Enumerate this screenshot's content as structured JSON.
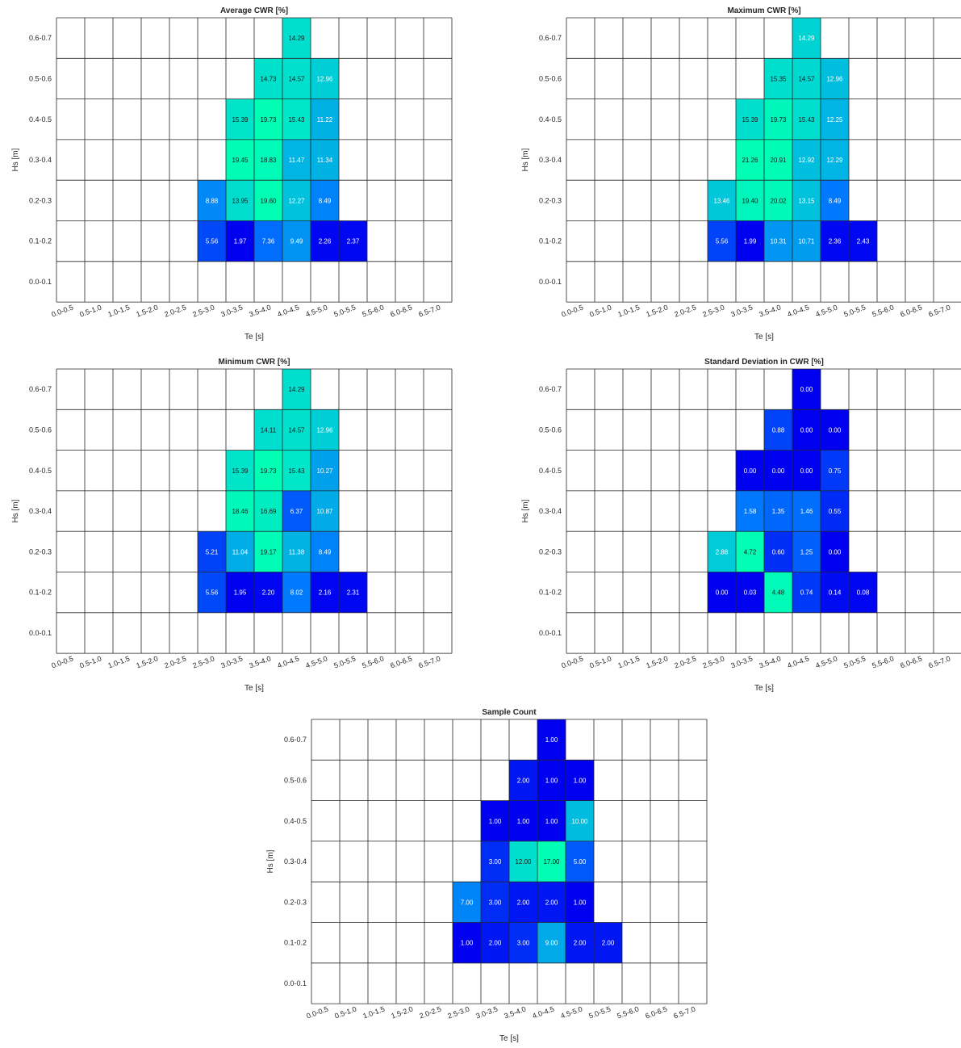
{
  "figure": {
    "background": "#ffffff",
    "colormap": [
      "#0000f0",
      "#0078ff",
      "#00dcd0",
      "#00ffb4"
    ]
  },
  "chart_data": [
    {
      "type": "heatmap",
      "title": "Average CWR [%]",
      "xlabel": "Te [s]",
      "ylabel": "Hs [m]",
      "x_categories": [
        "0.0-0.5",
        "0.5-1.0",
        "1.0-1.5",
        "1.5-2.0",
        "2.0-2.5",
        "2.5-3.0",
        "3.0-3.5",
        "3.5-4.0",
        "4.0-4.5",
        "4.5-5.0",
        "5.0-5.5",
        "5.5-6.0",
        "6.0-6.5",
        "6.5-7.0"
      ],
      "y_categories": [
        "0.6-0.7",
        "0.5-0.6",
        "0.4-0.5",
        "0.3-0.4",
        "0.2-0.3",
        "0.1-0.2",
        "0.0-0.1"
      ],
      "cells": [
        {
          "x": "4.0-4.5",
          "y": "0.6-0.7",
          "value": "14.29"
        },
        {
          "x": "3.5-4.0",
          "y": "0.5-0.6",
          "value": "14.73"
        },
        {
          "x": "4.0-4.5",
          "y": "0.5-0.6",
          "value": "14.57"
        },
        {
          "x": "4.5-5.0",
          "y": "0.5-0.6",
          "value": "12.96"
        },
        {
          "x": "3.0-3.5",
          "y": "0.4-0.5",
          "value": "15.39"
        },
        {
          "x": "3.5-4.0",
          "y": "0.4-0.5",
          "value": "19.73"
        },
        {
          "x": "4.0-4.5",
          "y": "0.4-0.5",
          "value": "15.43"
        },
        {
          "x": "4.5-5.0",
          "y": "0.4-0.5",
          "value": "11.22"
        },
        {
          "x": "3.0-3.5",
          "y": "0.3-0.4",
          "value": "19.45"
        },
        {
          "x": "3.5-4.0",
          "y": "0.3-0.4",
          "value": "18.83"
        },
        {
          "x": "4.0-4.5",
          "y": "0.3-0.4",
          "value": "11.47"
        },
        {
          "x": "4.5-5.0",
          "y": "0.3-0.4",
          "value": "11.34"
        },
        {
          "x": "2.5-3.0",
          "y": "0.2-0.3",
          "value": "8.88"
        },
        {
          "x": "3.0-3.5",
          "y": "0.2-0.3",
          "value": "13.95"
        },
        {
          "x": "3.5-4.0",
          "y": "0.2-0.3",
          "value": "19.60"
        },
        {
          "x": "4.0-4.5",
          "y": "0.2-0.3",
          "value": "12.27"
        },
        {
          "x": "4.5-5.0",
          "y": "0.2-0.3",
          "value": "8.49"
        },
        {
          "x": "2.5-3.0",
          "y": "0.1-0.2",
          "value": "5.56"
        },
        {
          "x": "3.0-3.5",
          "y": "0.1-0.2",
          "value": "1.97"
        },
        {
          "x": "3.5-4.0",
          "y": "0.1-0.2",
          "value": "7.36"
        },
        {
          "x": "4.0-4.5",
          "y": "0.1-0.2",
          "value": "9.49"
        },
        {
          "x": "4.5-5.0",
          "y": "0.1-0.2",
          "value": "2.26"
        },
        {
          "x": "5.0-5.5",
          "y": "0.1-0.2",
          "value": "2.37"
        }
      ]
    },
    {
      "type": "heatmap",
      "title": "Maximum CWR [%]",
      "xlabel": "Te [s]",
      "ylabel": "Hs [m]",
      "x_categories": [
        "0.0-0.5",
        "0.5-1.0",
        "1.0-1.5",
        "1.5-2.0",
        "2.0-2.5",
        "2.5-3.0",
        "3.0-3.5",
        "3.5-4.0",
        "4.0-4.5",
        "4.5-5.0",
        "5.0-5.5",
        "5.5-6.0",
        "6.0-6.5",
        "6.5-7.0"
      ],
      "y_categories": [
        "0.6-0.7",
        "0.5-0.6",
        "0.4-0.5",
        "0.3-0.4",
        "0.2-0.3",
        "0.1-0.2",
        "0.0-0.1"
      ],
      "cells": [
        {
          "x": "4.0-4.5",
          "y": "0.6-0.7",
          "value": "14.29"
        },
        {
          "x": "3.5-4.0",
          "y": "0.5-0.6",
          "value": "15.35"
        },
        {
          "x": "4.0-4.5",
          "y": "0.5-0.6",
          "value": "14.57"
        },
        {
          "x": "4.5-5.0",
          "y": "0.5-0.6",
          "value": "12.96"
        },
        {
          "x": "3.0-3.5",
          "y": "0.4-0.5",
          "value": "15.39"
        },
        {
          "x": "3.5-4.0",
          "y": "0.4-0.5",
          "value": "19.73"
        },
        {
          "x": "4.0-4.5",
          "y": "0.4-0.5",
          "value": "15.43"
        },
        {
          "x": "4.5-5.0",
          "y": "0.4-0.5",
          "value": "12.25"
        },
        {
          "x": "3.0-3.5",
          "y": "0.3-0.4",
          "value": "21.26"
        },
        {
          "x": "3.5-4.0",
          "y": "0.3-0.4",
          "value": "20.91"
        },
        {
          "x": "4.0-4.5",
          "y": "0.3-0.4",
          "value": "12.92"
        },
        {
          "x": "4.5-5.0",
          "y": "0.3-0.4",
          "value": "12.29"
        },
        {
          "x": "2.5-3.0",
          "y": "0.2-0.3",
          "value": "13.46"
        },
        {
          "x": "3.0-3.5",
          "y": "0.2-0.3",
          "value": "19.40"
        },
        {
          "x": "3.5-4.0",
          "y": "0.2-0.3",
          "value": "20.02"
        },
        {
          "x": "4.0-4.5",
          "y": "0.2-0.3",
          "value": "13.15"
        },
        {
          "x": "4.5-5.0",
          "y": "0.2-0.3",
          "value": "8.49"
        },
        {
          "x": "2.5-3.0",
          "y": "0.1-0.2",
          "value": "5.56"
        },
        {
          "x": "3.0-3.5",
          "y": "0.1-0.2",
          "value": "1.99"
        },
        {
          "x": "3.5-4.0",
          "y": "0.1-0.2",
          "value": "10.31"
        },
        {
          "x": "4.0-4.5",
          "y": "0.1-0.2",
          "value": "10.71"
        },
        {
          "x": "4.5-5.0",
          "y": "0.1-0.2",
          "value": "2.36"
        },
        {
          "x": "5.0-5.5",
          "y": "0.1-0.2",
          "value": "2.43"
        }
      ]
    },
    {
      "type": "heatmap",
      "title": "Minimum CWR [%]",
      "xlabel": "Te [s]",
      "ylabel": "Hs [m]",
      "x_categories": [
        "0.0-0.5",
        "0.5-1.0",
        "1.0-1.5",
        "1.5-2.0",
        "2.0-2.5",
        "2.5-3.0",
        "3.0-3.5",
        "3.5-4.0",
        "4.0-4.5",
        "4.5-5.0",
        "5.0-5.5",
        "5.5-6.0",
        "6.0-6.5",
        "6.5-7.0"
      ],
      "y_categories": [
        "0.6-0.7",
        "0.5-0.6",
        "0.4-0.5",
        "0.3-0.4",
        "0.2-0.3",
        "0.1-0.2",
        "0.0-0.1"
      ],
      "cells": [
        {
          "x": "4.0-4.5",
          "y": "0.6-0.7",
          "value": "14.29"
        },
        {
          "x": "3.5-4.0",
          "y": "0.5-0.6",
          "value": "14.11"
        },
        {
          "x": "4.0-4.5",
          "y": "0.5-0.6",
          "value": "14.57"
        },
        {
          "x": "4.5-5.0",
          "y": "0.5-0.6",
          "value": "12.96"
        },
        {
          "x": "3.0-3.5",
          "y": "0.4-0.5",
          "value": "15.39"
        },
        {
          "x": "3.5-4.0",
          "y": "0.4-0.5",
          "value": "19.73"
        },
        {
          "x": "4.0-4.5",
          "y": "0.4-0.5",
          "value": "15.43"
        },
        {
          "x": "4.5-5.0",
          "y": "0.4-0.5",
          "value": "10.27"
        },
        {
          "x": "3.0-3.5",
          "y": "0.3-0.4",
          "value": "18.46"
        },
        {
          "x": "3.5-4.0",
          "y": "0.3-0.4",
          "value": "16.69"
        },
        {
          "x": "4.0-4.5",
          "y": "0.3-0.4",
          "value": "6.37"
        },
        {
          "x": "4.5-5.0",
          "y": "0.3-0.4",
          "value": "10.87"
        },
        {
          "x": "2.5-3.0",
          "y": "0.2-0.3",
          "value": "5.21"
        },
        {
          "x": "3.0-3.5",
          "y": "0.2-0.3",
          "value": "11.04"
        },
        {
          "x": "3.5-4.0",
          "y": "0.2-0.3",
          "value": "19.17"
        },
        {
          "x": "4.0-4.5",
          "y": "0.2-0.3",
          "value": "11.38"
        },
        {
          "x": "4.5-5.0",
          "y": "0.2-0.3",
          "value": "8.49"
        },
        {
          "x": "2.5-3.0",
          "y": "0.1-0.2",
          "value": "5.56"
        },
        {
          "x": "3.0-3.5",
          "y": "0.1-0.2",
          "value": "1.95"
        },
        {
          "x": "3.5-4.0",
          "y": "0.1-0.2",
          "value": "2.20"
        },
        {
          "x": "4.0-4.5",
          "y": "0.1-0.2",
          "value": "8.02"
        },
        {
          "x": "4.5-5.0",
          "y": "0.1-0.2",
          "value": "2.16"
        },
        {
          "x": "5.0-5.5",
          "y": "0.1-0.2",
          "value": "2.31"
        }
      ]
    },
    {
      "type": "heatmap",
      "title": "Standard Deviation in CWR [%]",
      "xlabel": "Te [s]",
      "ylabel": "Hs [m]",
      "x_categories": [
        "0.0-0.5",
        "0.5-1.0",
        "1.0-1.5",
        "1.5-2.0",
        "2.0-2.5",
        "2.5-3.0",
        "3.0-3.5",
        "3.5-4.0",
        "4.0-4.5",
        "4.5-5.0",
        "5.0-5.5",
        "5.5-6.0",
        "6.0-6.5",
        "6.5-7.0"
      ],
      "y_categories": [
        "0.6-0.7",
        "0.5-0.6",
        "0.4-0.5",
        "0.3-0.4",
        "0.2-0.3",
        "0.1-0.2",
        "0.0-0.1"
      ],
      "cells": [
        {
          "x": "4.0-4.5",
          "y": "0.6-0.7",
          "value": "0.00"
        },
        {
          "x": "3.5-4.0",
          "y": "0.5-0.6",
          "value": "0.88"
        },
        {
          "x": "4.0-4.5",
          "y": "0.5-0.6",
          "value": "0.00"
        },
        {
          "x": "4.5-5.0",
          "y": "0.5-0.6",
          "value": "0.00"
        },
        {
          "x": "3.0-3.5",
          "y": "0.4-0.5",
          "value": "0.00"
        },
        {
          "x": "3.5-4.0",
          "y": "0.4-0.5",
          "value": "0.00"
        },
        {
          "x": "4.0-4.5",
          "y": "0.4-0.5",
          "value": "0.00"
        },
        {
          "x": "4.5-5.0",
          "y": "0.4-0.5",
          "value": "0.75"
        },
        {
          "x": "3.0-3.5",
          "y": "0.3-0.4",
          "value": "1.58"
        },
        {
          "x": "3.5-4.0",
          "y": "0.3-0.4",
          "value": "1.35"
        },
        {
          "x": "4.0-4.5",
          "y": "0.3-0.4",
          "value": "1.46"
        },
        {
          "x": "4.5-5.0",
          "y": "0.3-0.4",
          "value": "0.55"
        },
        {
          "x": "2.5-3.0",
          "y": "0.2-0.3",
          "value": "2.88"
        },
        {
          "x": "3.0-3.5",
          "y": "0.2-0.3",
          "value": "4.72"
        },
        {
          "x": "3.5-4.0",
          "y": "0.2-0.3",
          "value": "0.60"
        },
        {
          "x": "4.0-4.5",
          "y": "0.2-0.3",
          "value": "1.25"
        },
        {
          "x": "4.5-5.0",
          "y": "0.2-0.3",
          "value": "0.00"
        },
        {
          "x": "2.5-3.0",
          "y": "0.1-0.2",
          "value": "0.00"
        },
        {
          "x": "3.0-3.5",
          "y": "0.1-0.2",
          "value": "0.03"
        },
        {
          "x": "3.5-4.0",
          "y": "0.1-0.2",
          "value": "4.48"
        },
        {
          "x": "4.0-4.5",
          "y": "0.1-0.2",
          "value": "0.74"
        },
        {
          "x": "4.5-5.0",
          "y": "0.1-0.2",
          "value": "0.14"
        },
        {
          "x": "5.0-5.5",
          "y": "0.1-0.2",
          "value": "0.08"
        }
      ]
    },
    {
      "type": "heatmap",
      "title": "Sample Count",
      "xlabel": "Te [s]",
      "ylabel": "Hs [m]",
      "x_categories": [
        "0.0-0.5",
        "0.5-1.0",
        "1.0-1.5",
        "1.5-2.0",
        "2.0-2.5",
        "2.5-3.0",
        "3.0-3.5",
        "3.5-4.0",
        "4.0-4.5",
        "4.5-5.0",
        "5.0-5.5",
        "5.5-6.0",
        "6.0-6.5",
        "6.5-7.0"
      ],
      "y_categories": [
        "0.6-0.7",
        "0.5-0.6",
        "0.4-0.5",
        "0.3-0.4",
        "0.2-0.3",
        "0.1-0.2",
        "0.0-0.1"
      ],
      "cells": [
        {
          "x": "4.0-4.5",
          "y": "0.6-0.7",
          "value": "1.00"
        },
        {
          "x": "3.5-4.0",
          "y": "0.5-0.6",
          "value": "2.00"
        },
        {
          "x": "4.0-4.5",
          "y": "0.5-0.6",
          "value": "1.00"
        },
        {
          "x": "4.5-5.0",
          "y": "0.5-0.6",
          "value": "1.00"
        },
        {
          "x": "3.0-3.5",
          "y": "0.4-0.5",
          "value": "1.00"
        },
        {
          "x": "3.5-4.0",
          "y": "0.4-0.5",
          "value": "1.00"
        },
        {
          "x": "4.0-4.5",
          "y": "0.4-0.5",
          "value": "1.00"
        },
        {
          "x": "4.5-5.0",
          "y": "0.4-0.5",
          "value": "10.00"
        },
        {
          "x": "3.0-3.5",
          "y": "0.3-0.4",
          "value": "3.00"
        },
        {
          "x": "3.5-4.0",
          "y": "0.3-0.4",
          "value": "12.00"
        },
        {
          "x": "4.0-4.5",
          "y": "0.3-0.4",
          "value": "17.00"
        },
        {
          "x": "4.5-5.0",
          "y": "0.3-0.4",
          "value": "5.00"
        },
        {
          "x": "2.5-3.0",
          "y": "0.2-0.3",
          "value": "7.00"
        },
        {
          "x": "3.0-3.5",
          "y": "0.2-0.3",
          "value": "3.00"
        },
        {
          "x": "3.5-4.0",
          "y": "0.2-0.3",
          "value": "2.00"
        },
        {
          "x": "4.0-4.5",
          "y": "0.2-0.3",
          "value": "2.00"
        },
        {
          "x": "4.5-5.0",
          "y": "0.2-0.3",
          "value": "1.00"
        },
        {
          "x": "2.5-3.0",
          "y": "0.1-0.2",
          "value": "1.00"
        },
        {
          "x": "3.0-3.5",
          "y": "0.1-0.2",
          "value": "2.00"
        },
        {
          "x": "3.5-4.0",
          "y": "0.1-0.2",
          "value": "3.00"
        },
        {
          "x": "4.0-4.5",
          "y": "0.1-0.2",
          "value": "9.00"
        },
        {
          "x": "4.5-5.0",
          "y": "0.1-0.2",
          "value": "2.00"
        },
        {
          "x": "5.0-5.5",
          "y": "0.1-0.2",
          "value": "2.00"
        }
      ]
    }
  ]
}
